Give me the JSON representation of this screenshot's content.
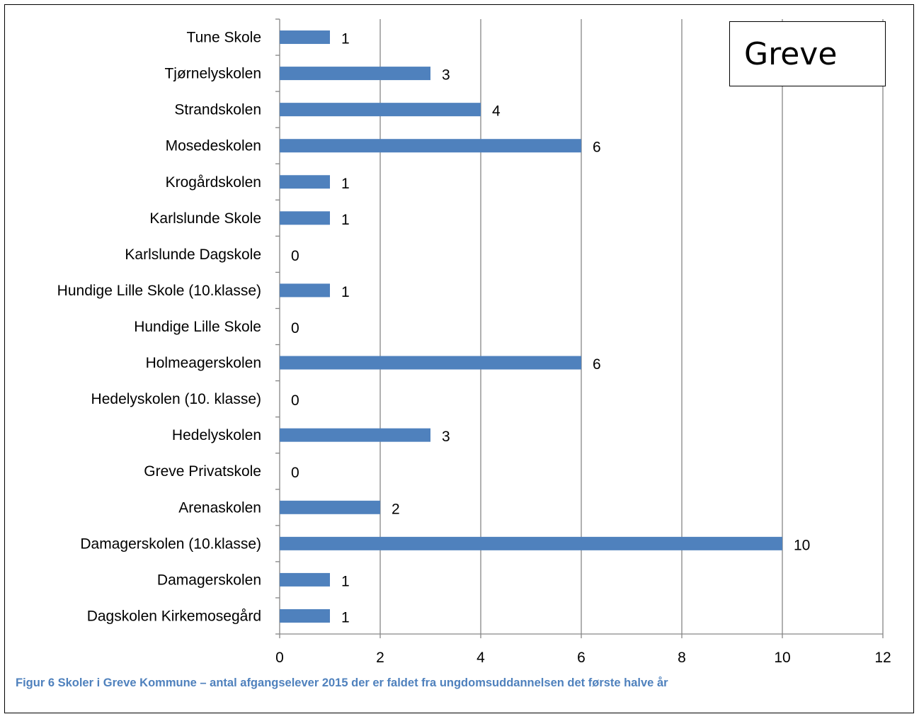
{
  "chart_data": {
    "type": "bar",
    "orientation": "horizontal",
    "categories": [
      "Tune Skole",
      "Tjørnelyskolen",
      "Strandskolen",
      "Mosedeskolen",
      "Krogårdskolen",
      "Karlslunde Skole",
      "Karlslunde Dagskole",
      "Hundige Lille Skole (10.klasse)",
      "Hundige Lille Skole",
      "Holmeagerskolen",
      "Hedelyskolen (10. klasse)",
      "Hedelyskolen",
      "Greve Privatskole",
      "Arenaskolen",
      "Damagerskolen (10.klasse)",
      "Damagerskolen",
      "Dagskolen Kirkemosegård"
    ],
    "values": [
      1,
      3,
      4,
      6,
      1,
      1,
      0,
      1,
      0,
      6,
      0,
      3,
      0,
      2,
      10,
      1,
      1
    ],
    "title": "Greve",
    "xlim": [
      0,
      12
    ],
    "xticks": [
      0,
      2,
      4,
      6,
      8,
      10,
      12
    ],
    "grid": "vertical",
    "data_labels": true,
    "bar_color": "#4f81bd"
  },
  "caption": "Figur 6 Skoler i Greve Kommune – antal afgangselever 2015 der er faldet fra ungdomsuddannelsen det første halve år",
  "colors": {
    "caption": "#4f81bd",
    "gridline": "#868686",
    "axis": "#868686"
  }
}
